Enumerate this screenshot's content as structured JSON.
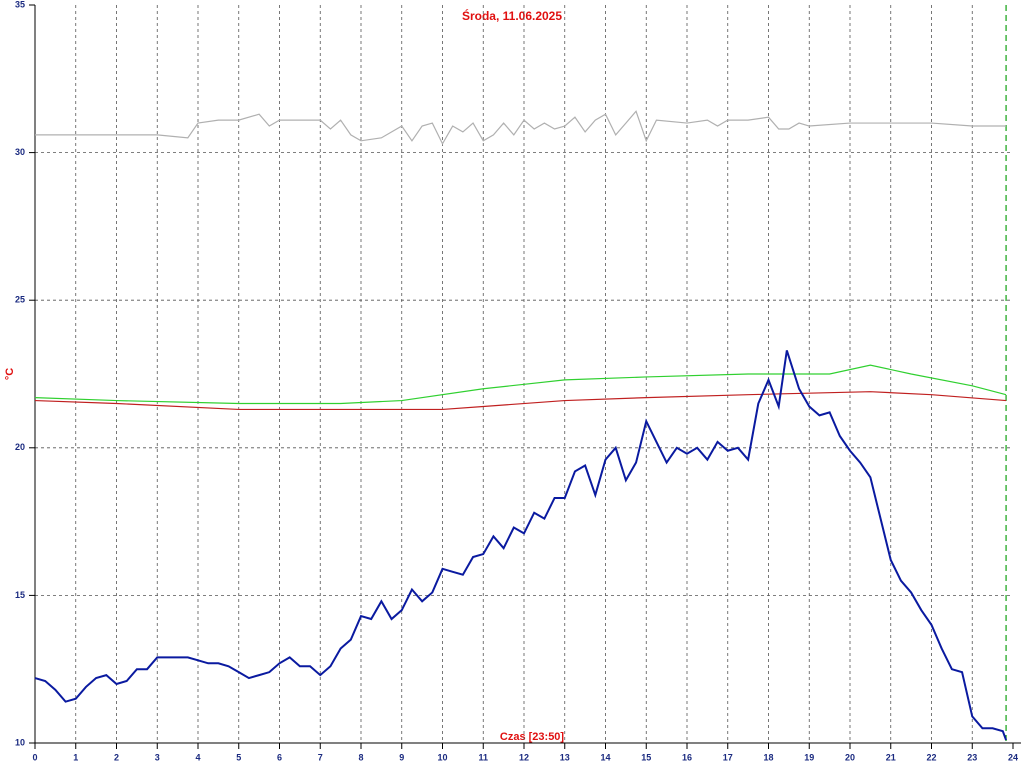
{
  "chart_data": {
    "type": "line",
    "title": "Środa, 11.06.2025",
    "x_label": "Czas [23:50]",
    "y_label": "°C",
    "xlim": [
      0,
      24
    ],
    "xticks": [
      0,
      1,
      2,
      3,
      4,
      5,
      6,
      7,
      8,
      9,
      10,
      11,
      12,
      13,
      14,
      15,
      16,
      17,
      18,
      19,
      20,
      21,
      22,
      23,
      24
    ],
    "ylim": [
      10,
      35
    ],
    "yticks": [
      10,
      15,
      20,
      25,
      30,
      35
    ],
    "grid": true,
    "cursor_x": 23.83,
    "cursor_color": "#10a010",
    "series": [
      {
        "color": "#b0b0b0",
        "x": [
          0,
          1,
          2,
          3,
          3.75,
          4,
          4.5,
          5,
          5.5,
          5.75,
          6,
          7,
          7.25,
          7.5,
          7.75,
          8,
          8.5,
          9,
          9.25,
          9.5,
          9.75,
          10,
          10.25,
          10.5,
          10.75,
          11,
          11.25,
          11.5,
          11.75,
          12,
          12.25,
          12.5,
          12.75,
          13,
          13.25,
          13.5,
          13.75,
          14,
          14.25,
          14.5,
          14.75,
          15,
          15.25,
          16,
          16.5,
          16.75,
          17,
          17.5,
          18,
          18.25,
          18.5,
          18.75,
          19,
          20,
          21,
          22,
          23,
          23.83
        ],
        "values": [
          30.6,
          30.6,
          30.6,
          30.6,
          30.5,
          31.0,
          31.1,
          31.1,
          31.3,
          30.9,
          31.1,
          31.1,
          30.8,
          31.1,
          30.6,
          30.4,
          30.5,
          30.9,
          30.4,
          30.9,
          31.0,
          30.3,
          30.9,
          30.7,
          31.0,
          30.4,
          30.6,
          31.0,
          30.6,
          31.1,
          30.8,
          31.0,
          30.8,
          30.9,
          31.2,
          30.7,
          31.1,
          31.3,
          30.6,
          31.0,
          31.4,
          30.4,
          31.1,
          31.0,
          31.1,
          30.9,
          31.1,
          31.1,
          31.2,
          30.8,
          30.8,
          31.0,
          30.9,
          31.0,
          31.0,
          31.0,
          30.9,
          30.9
        ]
      },
      {
        "color": "#30d030",
        "x": [
          0,
          2,
          5,
          7.5,
          9,
          11,
          13,
          15,
          17.5,
          19.5,
          20.5,
          21.5,
          23,
          23.83
        ],
        "values": [
          21.7,
          21.6,
          21.5,
          21.5,
          21.6,
          22.0,
          22.3,
          22.4,
          22.5,
          22.5,
          22.8,
          22.5,
          22.1,
          21.8
        ]
      },
      {
        "color": "#c02020",
        "x": [
          0,
          2,
          5,
          7.5,
          10,
          11,
          13,
          15,
          17.5,
          20.5,
          22,
          23.83
        ],
        "values": [
          21.6,
          21.5,
          21.3,
          21.3,
          21.3,
          21.4,
          21.6,
          21.7,
          21.8,
          21.9,
          21.8,
          21.6
        ]
      },
      {
        "color": "#0a1aa0",
        "x": [
          0,
          0.25,
          0.5,
          0.75,
          1,
          1.25,
          1.5,
          1.75,
          2,
          2.25,
          2.5,
          2.75,
          3,
          3.25,
          3.5,
          3.75,
          4,
          4.25,
          4.5,
          4.75,
          5,
          5.25,
          5.5,
          5.75,
          6,
          6.25,
          6.5,
          6.75,
          7,
          7.25,
          7.5,
          7.75,
          8,
          8.25,
          8.5,
          8.75,
          9,
          9.25,
          9.5,
          9.75,
          10,
          10.25,
          10.5,
          10.75,
          11,
          11.25,
          11.5,
          11.75,
          12,
          12.25,
          12.5,
          12.75,
          13,
          13.25,
          13.5,
          13.75,
          14,
          14.25,
          14.5,
          14.75,
          15,
          15.25,
          15.5,
          15.75,
          16,
          16.25,
          16.5,
          16.75,
          17,
          17.25,
          17.5,
          17.75,
          18,
          18.25,
          18.45,
          18.75,
          19,
          19.25,
          19.5,
          19.75,
          20,
          20.25,
          20.5,
          20.75,
          21,
          21.25,
          21.5,
          21.75,
          22,
          22.25,
          22.5,
          22.75,
          23,
          23.25,
          23.5,
          23.75,
          23.83
        ],
        "values": [
          12.2,
          12.1,
          11.8,
          11.4,
          11.5,
          11.9,
          12.2,
          12.3,
          12.0,
          12.1,
          12.5,
          12.5,
          12.9,
          12.9,
          12.9,
          12.9,
          12.8,
          12.7,
          12.7,
          12.6,
          12.4,
          12.2,
          12.3,
          12.4,
          12.7,
          12.9,
          12.6,
          12.6,
          12.3,
          12.6,
          13.2,
          13.5,
          14.3,
          14.2,
          14.8,
          14.2,
          14.5,
          15.2,
          14.8,
          15.1,
          15.9,
          15.8,
          15.7,
          16.3,
          16.4,
          17.0,
          16.6,
          17.3,
          17.1,
          17.8,
          17.6,
          18.3,
          18.3,
          19.2,
          19.4,
          18.4,
          19.6,
          20.0,
          18.9,
          19.5,
          20.9,
          20.2,
          19.5,
          20.0,
          19.8,
          20.0,
          19.6,
          20.2,
          19.9,
          20.0,
          19.6,
          21.5,
          22.3,
          21.4,
          23.3,
          22.0,
          21.4,
          21.1,
          21.2,
          20.4,
          19.9,
          19.5,
          19.0,
          17.6,
          16.2,
          15.5,
          15.1,
          14.5,
          14.0,
          13.2,
          12.5,
          12.4,
          10.9,
          10.5,
          10.5,
          10.4,
          10.1
        ]
      }
    ]
  }
}
